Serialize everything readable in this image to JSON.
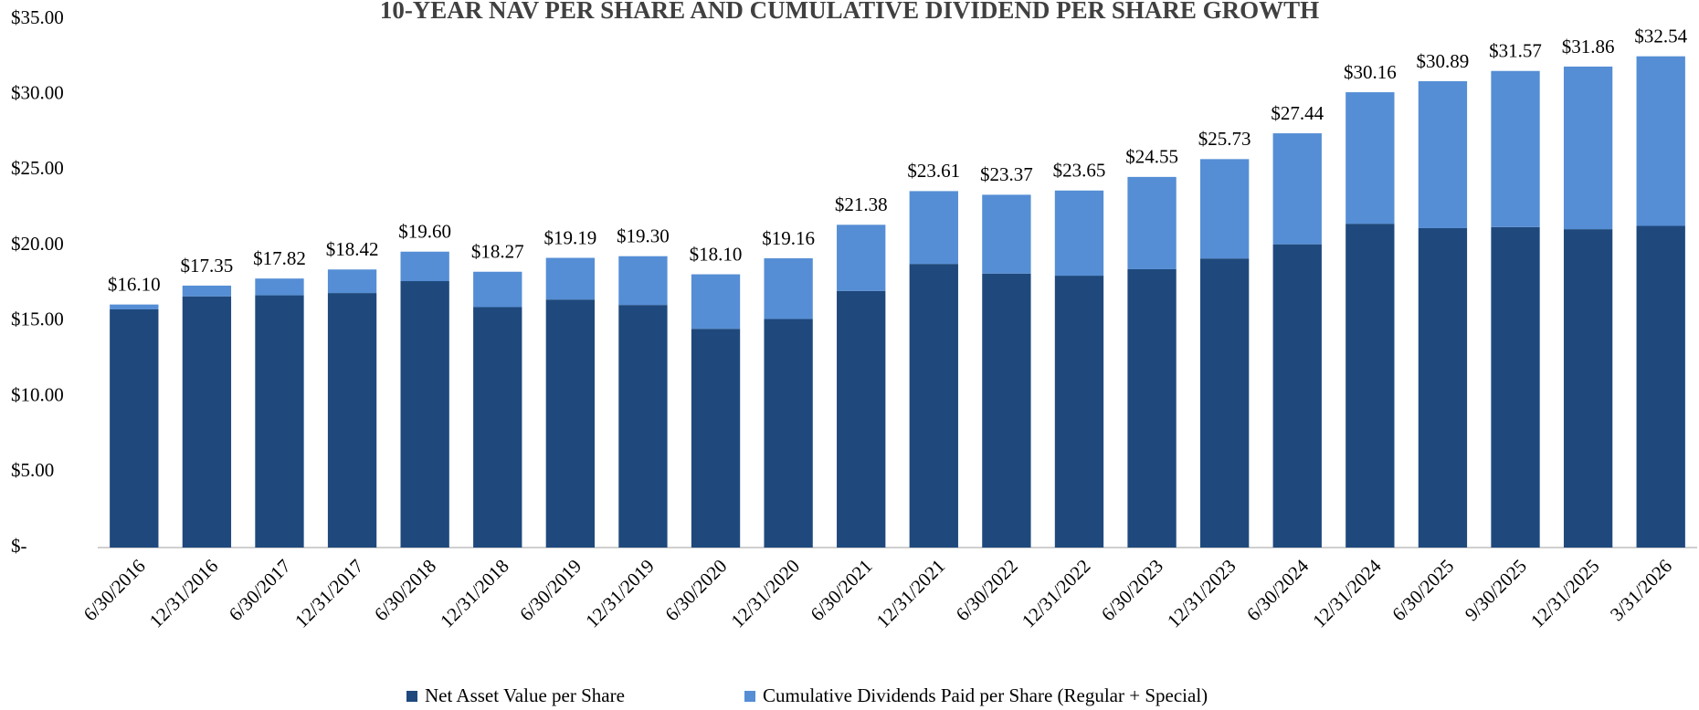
{
  "chart_data": {
    "type": "stacked_bar",
    "title": "10-YEAR NAV PER SHARE AND CUMULATIVE DIVIDEND PER SHARE GROWTH",
    "categories": [
      "6/30/2016",
      "12/31/2016",
      "6/30/2017",
      "12/31/2017",
      "6/30/2018",
      "12/31/2018",
      "6/30/2019",
      "12/31/2019",
      "6/30/2020",
      "12/31/2020",
      "6/30/2021",
      "12/31/2021",
      "6/30/2022",
      "12/31/2022",
      "6/30/2023",
      "12/31/2023",
      "6/30/2024",
      "12/31/2024",
      "6/30/2025",
      "9/30/2025",
      "12/31/2025",
      "3/31/2026"
    ],
    "series": [
      {
        "name": "Net Asset Value per Share",
        "color": "#1f497d",
        "values": [
          15.78,
          16.64,
          16.71,
          16.86,
          17.65,
          15.93,
          16.43,
          16.07,
          14.49,
          15.14,
          17.0,
          18.79,
          18.15,
          18.01,
          18.44,
          19.15,
          20.09,
          21.45,
          21.16,
          21.23,
          21.09,
          21.31
        ]
      },
      {
        "name": "Cumulative Dividends Paid per Share (Regular + Special)",
        "color": "#558ed5",
        "values": [
          0.32,
          0.71,
          1.11,
          1.56,
          1.95,
          2.34,
          2.76,
          3.23,
          3.61,
          4.02,
          4.38,
          4.82,
          5.22,
          5.64,
          6.11,
          6.58,
          7.35,
          8.71,
          9.73,
          10.34,
          10.77,
          11.23
        ]
      }
    ],
    "totals": [
      16.1,
      17.35,
      17.82,
      18.42,
      19.6,
      18.27,
      19.19,
      19.3,
      18.1,
      19.16,
      21.38,
      23.61,
      23.37,
      23.65,
      24.55,
      25.73,
      27.44,
      30.16,
      30.89,
      31.57,
      31.86,
      32.54
    ],
    "total_labels": [
      "$16.10",
      "$17.35",
      "$17.82",
      "$18.42",
      "$19.60",
      "$18.27",
      "$19.19",
      "$19.30",
      "$18.10",
      "$19.16",
      "$21.38",
      "$23.61",
      "$23.37",
      "$23.65",
      "$24.55",
      "$25.73",
      "$27.44",
      "$30.16",
      "$30.89",
      "$31.57",
      "$31.86",
      "$32.54"
    ],
    "ylim": [
      0,
      35
    ],
    "yticks": [
      {
        "value": 0,
        "label": "$-"
      },
      {
        "value": 5,
        "label": "$5.00"
      },
      {
        "value": 10,
        "label": "$10.00"
      },
      {
        "value": 15,
        "label": "$15.00"
      },
      {
        "value": 20,
        "label": "$20.00"
      },
      {
        "value": 25,
        "label": "$25.00"
      },
      {
        "value": 30,
        "label": "$30.00"
      },
      {
        "value": 35,
        "label": "$35.00"
      }
    ],
    "grid": false,
    "legend": "bottom"
  }
}
